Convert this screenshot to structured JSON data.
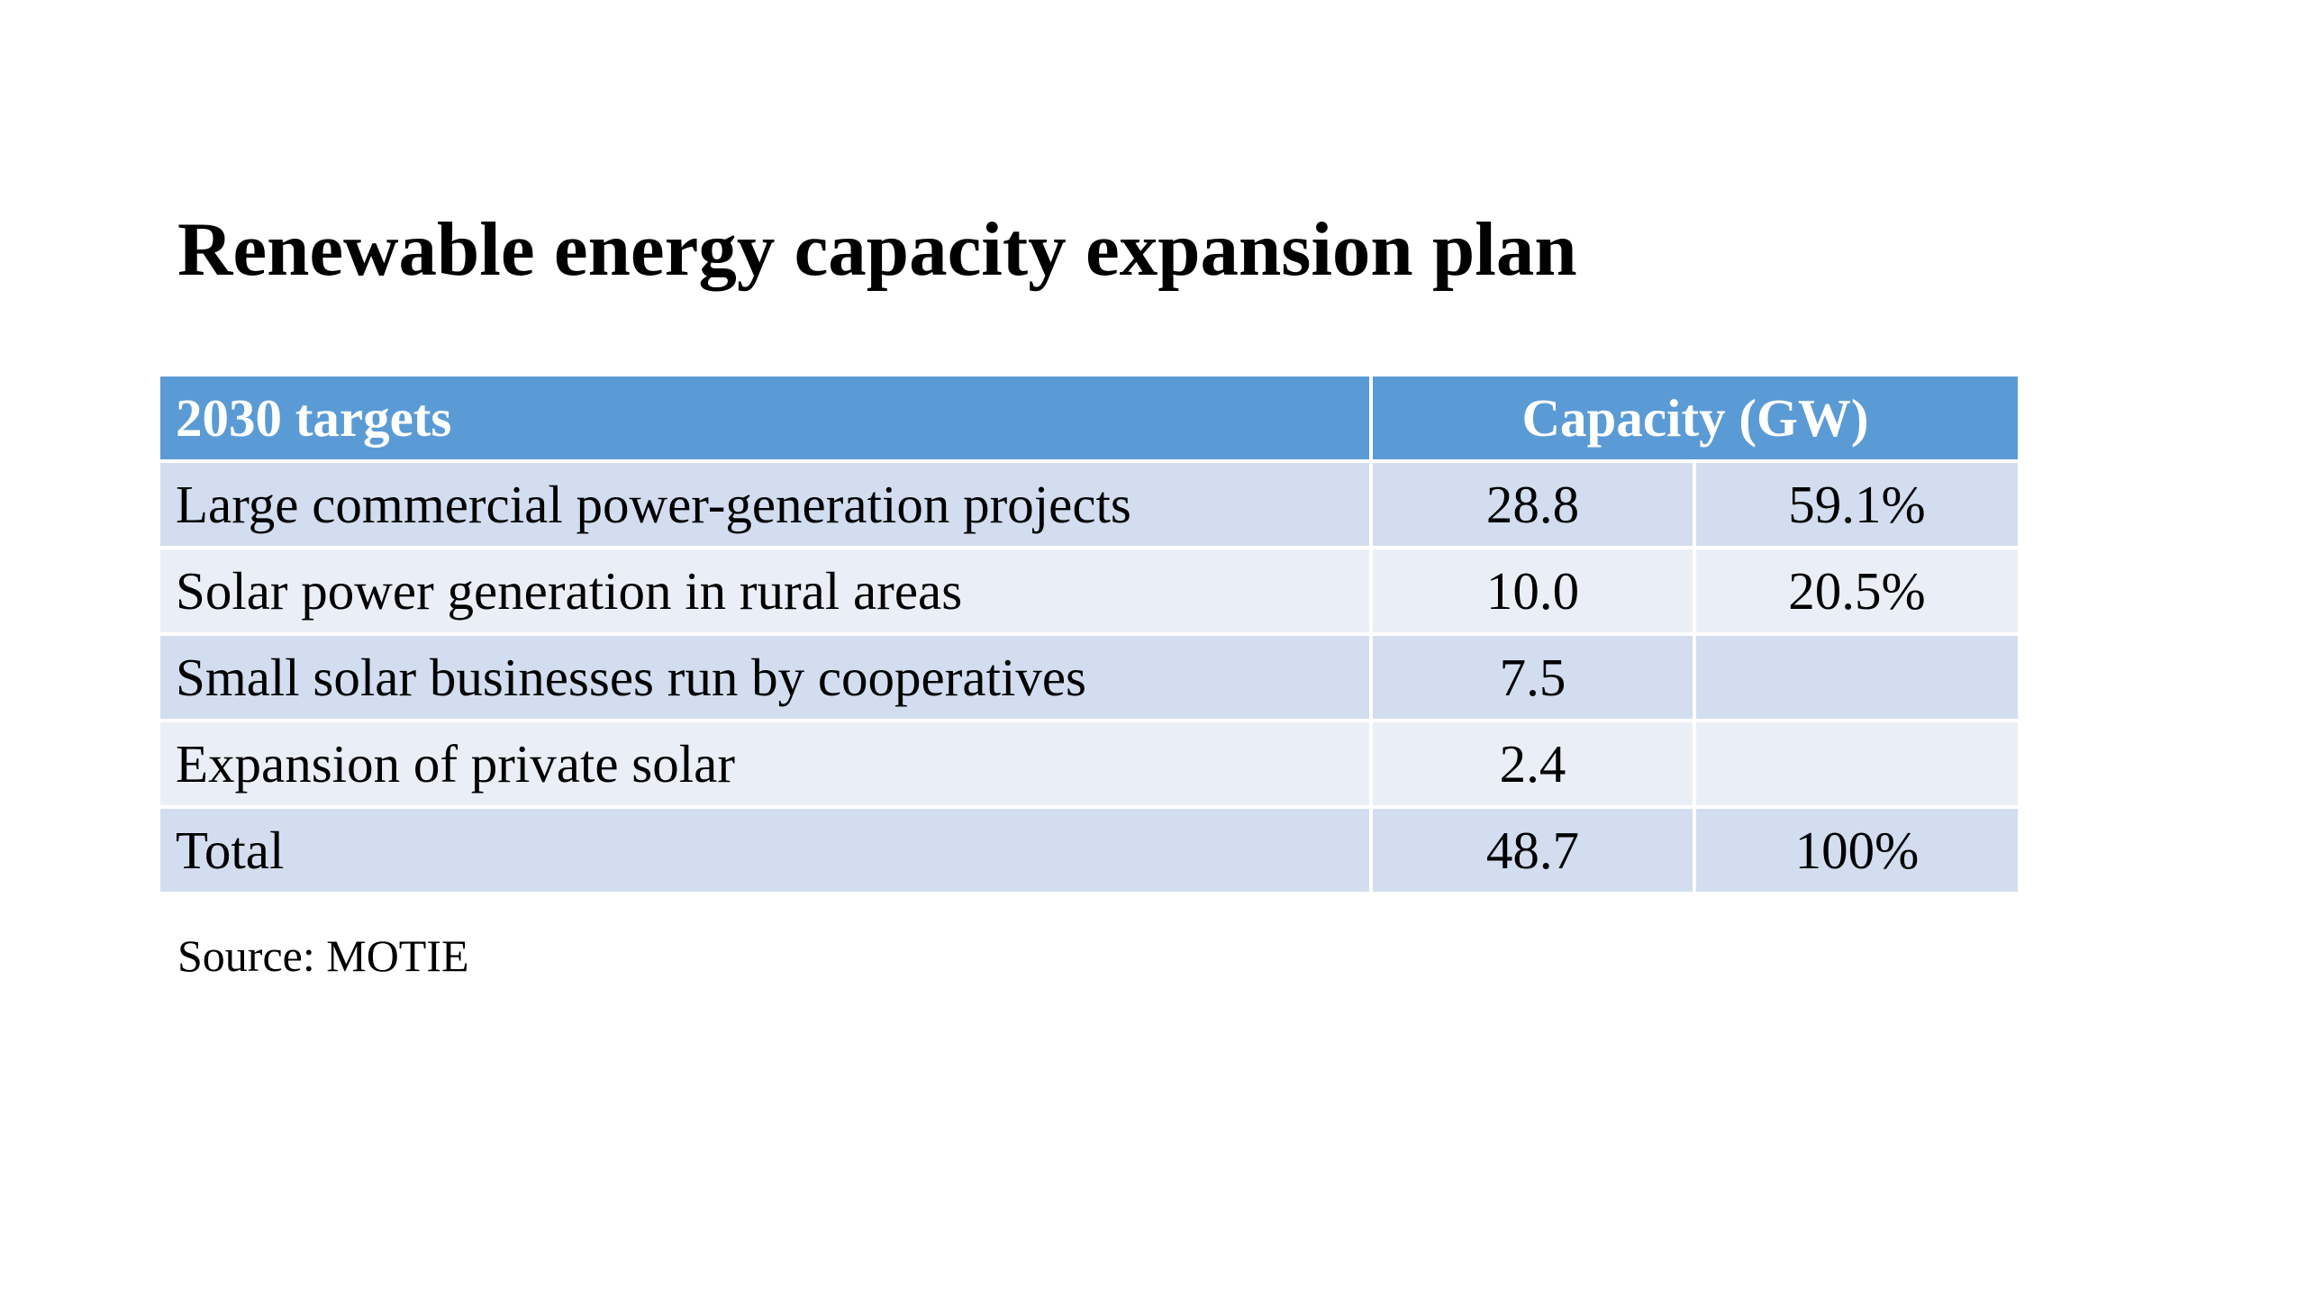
{
  "slide": {
    "title": "Renewable energy capacity expansion plan",
    "source": "Source: MOTIE"
  },
  "table": {
    "headers": {
      "label": "2030 targets",
      "capacity": "Capacity (GW)"
    },
    "rows": [
      {
        "label": "Large commercial power-generation projects",
        "capacity": "28.8",
        "share": "59.1%"
      },
      {
        "label": "Solar power generation in rural areas",
        "capacity": "10.0",
        "share": "20.5%"
      },
      {
        "label": "Small solar businesses run by cooperatives",
        "capacity": "7.5",
        "share": ""
      },
      {
        "label": "Expansion of private solar",
        "capacity": "2.4",
        "share": ""
      },
      {
        "label": "Total",
        "capacity": "48.7",
        "share": "100%"
      }
    ]
  },
  "colors": {
    "header_background": "#5b9bd5",
    "header_text": "#ffffff",
    "row_band_dark": "#d2deef",
    "row_band_light": "#eaeff7",
    "background": "#ffffff"
  }
}
